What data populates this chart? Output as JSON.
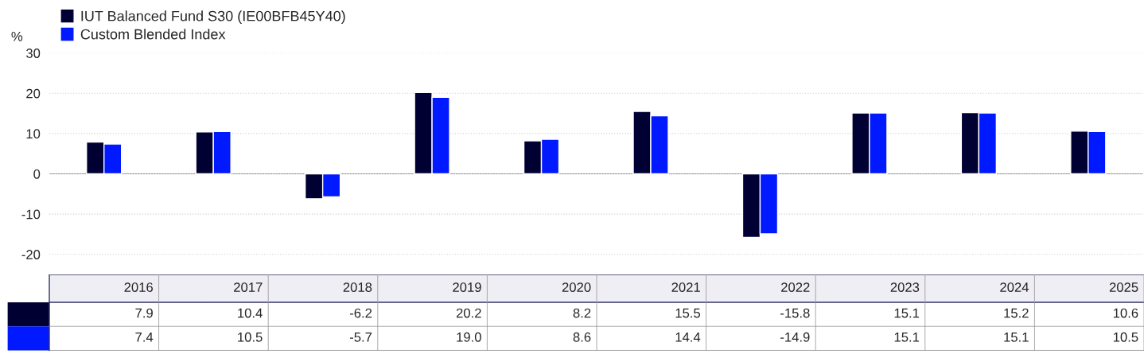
{
  "chart_data": {
    "type": "bar",
    "ylabel": "%",
    "categories": [
      "2016",
      "2017",
      "2018",
      "2019",
      "2020",
      "2021",
      "2022",
      "2023",
      "2024",
      "2025"
    ],
    "series": [
      {
        "name": "IUT Balanced Fund S30 (IE00BFB45Y40)",
        "color": "#000033",
        "values": [
          7.9,
          10.4,
          -6.2,
          20.2,
          8.2,
          15.5,
          -15.8,
          15.1,
          15.2,
          10.6
        ],
        "value_labels": [
          "7.9",
          "10.4",
          "-6.2",
          "20.2",
          "8.2",
          "15.5",
          "-15.8",
          "15.1",
          "15.2",
          "10.6"
        ]
      },
      {
        "name": "Custom Blended Index",
        "color": "#0019ff",
        "values": [
          7.4,
          10.5,
          -5.7,
          19.0,
          8.6,
          14.4,
          -14.9,
          15.1,
          15.1,
          10.5
        ],
        "value_labels": [
          "7.4",
          "10.5",
          "-5.7",
          "19.0",
          "8.6",
          "14.4",
          "-14.9",
          "15.1",
          "15.1",
          "10.5"
        ]
      }
    ],
    "ylim": [
      -25,
      30
    ],
    "yticks": [
      -20,
      -10,
      0,
      10,
      20,
      30
    ],
    "grid": "y",
    "legend": "top left"
  }
}
